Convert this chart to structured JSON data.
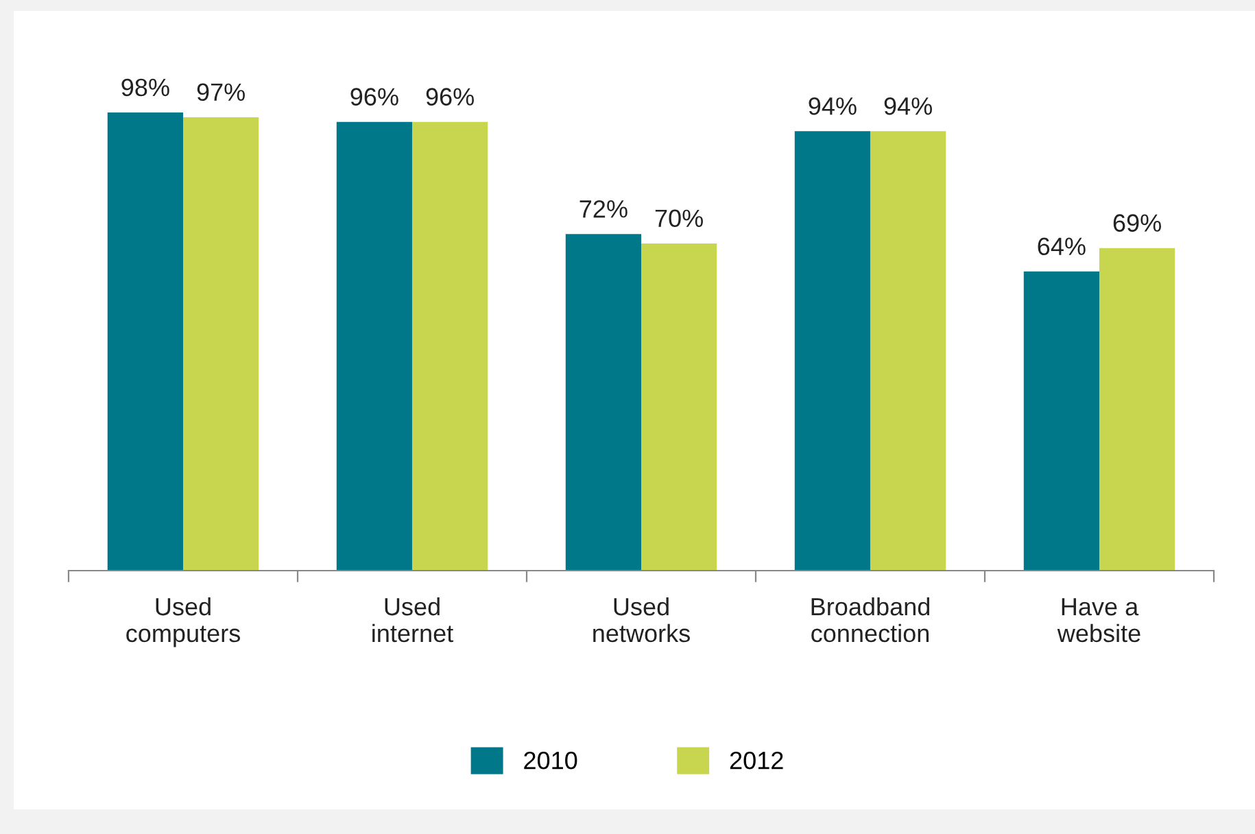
{
  "chart_data": {
    "type": "bar",
    "categories": [
      "Used\ncomputers",
      "Used\ninternet",
      "Used\nnetworks",
      "Broadband\nconnection",
      "Have a\nwebsite"
    ],
    "series": [
      {
        "name": "2010",
        "color": "#00788a",
        "values": [
          98,
          96,
          72,
          94,
          64
        ],
        "value_labels": [
          "98%",
          "96%",
          "72%",
          "94%",
          "64%"
        ]
      },
      {
        "name": "2012",
        "color": "#c8d64f",
        "values": [
          97,
          96,
          70,
          94,
          69
        ],
        "value_labels": [
          "97%",
          "96%",
          "70%",
          "94%",
          "69%"
        ]
      }
    ],
    "legend": "bottom",
    "grid": false,
    "tick_labels": "x"
  }
}
